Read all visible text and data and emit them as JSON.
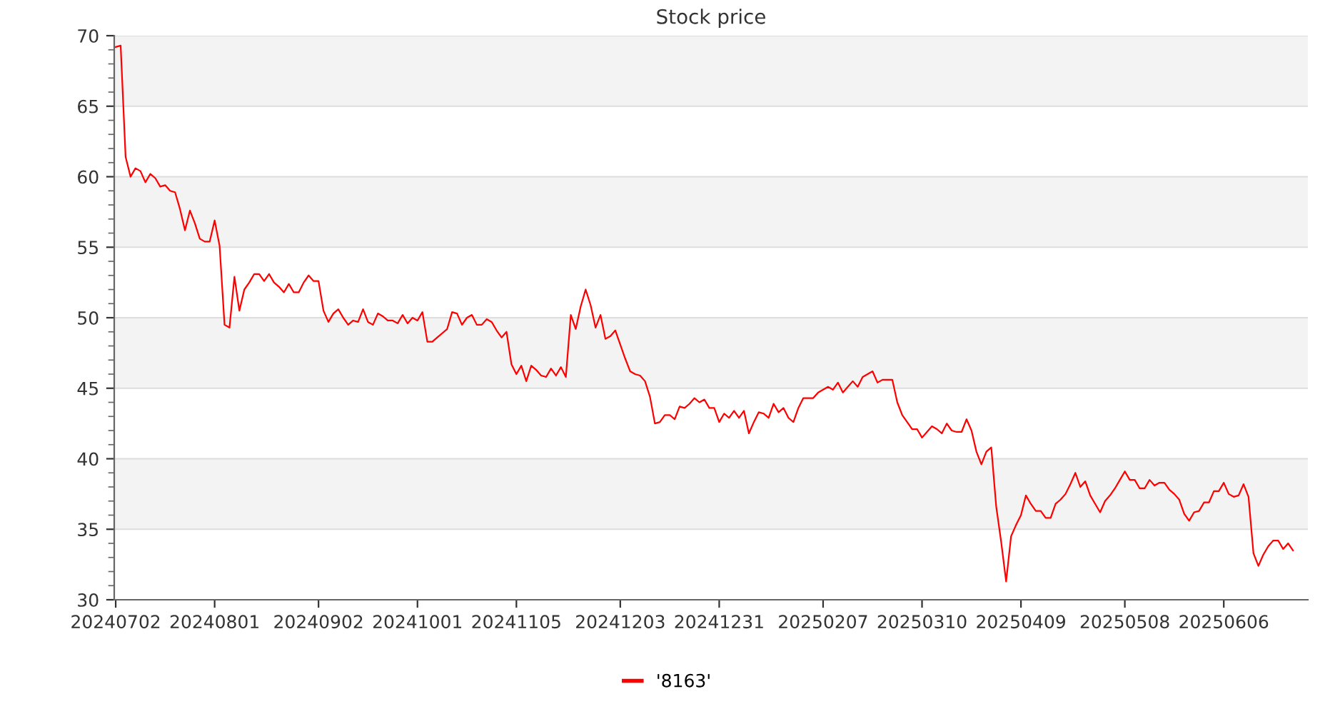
{
  "chart_data": {
    "type": "line",
    "title": "Stock price",
    "categories": [
      "20240702",
      null,
      null,
      null,
      null,
      null,
      null,
      null,
      null,
      null,
      null,
      null,
      null,
      null,
      null,
      null,
      null,
      null,
      null,
      null,
      "20240801",
      null,
      null,
      null,
      null,
      null,
      null,
      null,
      null,
      null,
      null,
      null,
      null,
      null,
      null,
      null,
      null,
      null,
      null,
      null,
      null,
      "20240902",
      null,
      null,
      null,
      null,
      null,
      null,
      null,
      null,
      null,
      null,
      null,
      null,
      null,
      null,
      null,
      null,
      null,
      null,
      null,
      "20241001",
      null,
      null,
      null,
      null,
      null,
      null,
      null,
      null,
      null,
      null,
      null,
      null,
      null,
      null,
      null,
      null,
      null,
      null,
      null,
      "20241105",
      null,
      null,
      null,
      null,
      null,
      null,
      null,
      null,
      null,
      null,
      null,
      null,
      null,
      null,
      null,
      null,
      null,
      null,
      null,
      null,
      "20241203",
      null,
      null,
      null,
      null,
      null,
      null,
      null,
      null,
      null,
      null,
      null,
      null,
      null,
      null,
      null,
      null,
      null,
      null,
      null,
      "20241231",
      null,
      null,
      null,
      null,
      null,
      null,
      null,
      null,
      null,
      null,
      null,
      null,
      null,
      null,
      null,
      null,
      null,
      null,
      null,
      null,
      "20250207",
      null,
      null,
      null,
      null,
      null,
      null,
      null,
      null,
      null,
      null,
      null,
      null,
      null,
      null,
      null,
      null,
      null,
      null,
      null,
      "20250310",
      null,
      null,
      null,
      null,
      null,
      null,
      null,
      null,
      null,
      null,
      null,
      null,
      null,
      null,
      null,
      null,
      null,
      null,
      null,
      "20250409",
      null,
      null,
      null,
      null,
      null,
      null,
      null,
      null,
      null,
      null,
      null,
      null,
      null,
      null,
      null,
      null,
      null,
      null,
      null,
      null,
      "20250508",
      null,
      null,
      null,
      null,
      null,
      null,
      null,
      null,
      null,
      null,
      null,
      null,
      null,
      null,
      null,
      null,
      null,
      null,
      null,
      "20250606",
      null,
      null,
      null,
      null,
      null,
      null,
      null,
      null,
      null,
      null,
      null,
      null,
      null,
      null
    ],
    "series": [
      {
        "name": "'8163'",
        "color": "#ff0000",
        "values": [
          69.2,
          69.3,
          61.4,
          60.0,
          60.6,
          60.4,
          59.6,
          60.2,
          59.9,
          59.3,
          59.4,
          59.0,
          58.9,
          57.7,
          56.2,
          57.6,
          56.7,
          55.6,
          55.4,
          55.4,
          56.9,
          55.1,
          49.5,
          49.3,
          52.9,
          50.5,
          52.0,
          52.5,
          53.1,
          53.1,
          52.6,
          53.1,
          52.5,
          52.2,
          51.8,
          52.4,
          51.8,
          51.8,
          52.5,
          53.0,
          52.6,
          52.6,
          50.5,
          49.7,
          50.3,
          50.6,
          50.0,
          49.5,
          49.8,
          49.7,
          50.6,
          49.7,
          49.5,
          50.3,
          50.1,
          49.8,
          49.8,
          49.6,
          50.2,
          49.6,
          50.0,
          49.8,
          50.4,
          48.3,
          48.3,
          48.6,
          48.9,
          49.2,
          50.4,
          50.3,
          49.5,
          50.0,
          50.2,
          49.5,
          49.5,
          49.9,
          49.7,
          49.1,
          48.6,
          49.0,
          46.7,
          46.0,
          46.6,
          45.5,
          46.6,
          46.3,
          45.9,
          45.8,
          46.4,
          45.9,
          46.5,
          45.8,
          50.2,
          49.2,
          50.8,
          52.0,
          50.9,
          49.3,
          50.2,
          48.5,
          48.7,
          49.1,
          48.1,
          47.1,
          46.2,
          46.0,
          45.9,
          45.5,
          44.4,
          42.5,
          42.6,
          43.1,
          43.1,
          42.8,
          43.7,
          43.6,
          43.9,
          44.3,
          44.0,
          44.2,
          43.6,
          43.6,
          42.6,
          43.2,
          42.9,
          43.4,
          42.9,
          43.4,
          41.8,
          42.6,
          43.3,
          43.2,
          42.9,
          43.9,
          43.3,
          43.6,
          42.9,
          42.6,
          43.6,
          44.3,
          44.3,
          44.3,
          44.7,
          44.9,
          45.1,
          44.9,
          45.4,
          44.7,
          45.1,
          45.5,
          45.1,
          45.8,
          46.0,
          46.2,
          45.4,
          45.6,
          45.6,
          45.6,
          44.0,
          43.1,
          42.6,
          42.1,
          42.1,
          41.5,
          41.9,
          42.3,
          42.1,
          41.8,
          42.5,
          42.0,
          41.9,
          41.9,
          42.8,
          42.0,
          40.5,
          39.6,
          40.5,
          40.8,
          36.6,
          34.1,
          31.3,
          34.5,
          35.3,
          36.0,
          37.4,
          36.8,
          36.3,
          36.3,
          35.8,
          35.8,
          36.8,
          37.1,
          37.5,
          38.2,
          39.0,
          38.0,
          38.4,
          37.4,
          36.8,
          36.2,
          37.0,
          37.4,
          37.9,
          38.5,
          39.1,
          38.5,
          38.5,
          37.9,
          37.9,
          38.5,
          38.1,
          38.3,
          38.3,
          37.8,
          37.5,
          37.1,
          36.1,
          35.6,
          36.2,
          36.3,
          36.9,
          36.9,
          37.7,
          37.7,
          38.3,
          37.5,
          37.3,
          37.4,
          38.2,
          37.3,
          33.3,
          32.4,
          33.2,
          33.8,
          34.2,
          34.2,
          33.6,
          34.0,
          33.5
        ]
      }
    ],
    "ylim": [
      30,
      70
    ],
    "yticks": [
      30,
      35,
      40,
      45,
      50,
      55,
      60,
      65,
      70
    ],
    "grid": "y",
    "legend": "bottom",
    "marker": "none",
    "line_style": "solid"
  }
}
